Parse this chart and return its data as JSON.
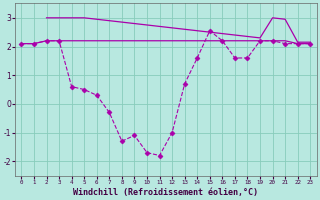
{
  "x": [
    0,
    1,
    2,
    3,
    4,
    5,
    6,
    7,
    8,
    9,
    10,
    11,
    12,
    13,
    14,
    15,
    16,
    17,
    18,
    19,
    20,
    21,
    22,
    23
  ],
  "line_main_y": [
    2.1,
    2.1,
    2.2,
    2.2,
    0.6,
    0.5,
    0.3,
    -0.3,
    -1.3,
    -1.1,
    -1.7,
    -1.8,
    -1.0,
    0.7,
    1.6,
    2.55,
    2.2,
    1.6,
    1.6,
    2.2,
    2.2,
    2.1,
    2.1,
    2.1
  ],
  "line_flat_y": [
    2.1,
    2.1,
    2.2,
    2.2,
    2.2,
    2.2,
    2.2,
    2.2,
    2.2,
    2.2,
    2.2,
    2.2,
    2.2,
    2.2,
    2.2,
    2.2,
    2.2,
    2.2,
    2.2,
    2.2,
    2.2,
    2.2,
    2.1,
    2.1
  ],
  "line_top_x": [
    2,
    3,
    4,
    5,
    6,
    7,
    8,
    9,
    10,
    11,
    12,
    13,
    14,
    15,
    16,
    17,
    18,
    19,
    20,
    21,
    22,
    23
  ],
  "line_top_y": [
    3.0,
    3.0,
    3.0,
    3.0,
    2.95,
    2.9,
    2.85,
    2.8,
    2.75,
    2.7,
    2.65,
    2.6,
    2.55,
    2.5,
    2.45,
    2.4,
    2.35,
    2.3,
    3.0,
    2.95,
    2.15,
    2.15
  ],
  "bg_color": "#b8e8e0",
  "grid_color": "#88ccbb",
  "line_color": "#aa00aa",
  "xlabel": "Windchill (Refroidissement éolien,°C)",
  "xlim": [
    -0.5,
    23.5
  ],
  "ylim": [
    -2.5,
    3.5
  ],
  "yticks": [
    -2,
    -1,
    0,
    1,
    2,
    3
  ],
  "xticks": [
    0,
    1,
    2,
    3,
    4,
    5,
    6,
    7,
    8,
    9,
    10,
    11,
    12,
    13,
    14,
    15,
    16,
    17,
    18,
    19,
    20,
    21,
    22,
    23
  ]
}
